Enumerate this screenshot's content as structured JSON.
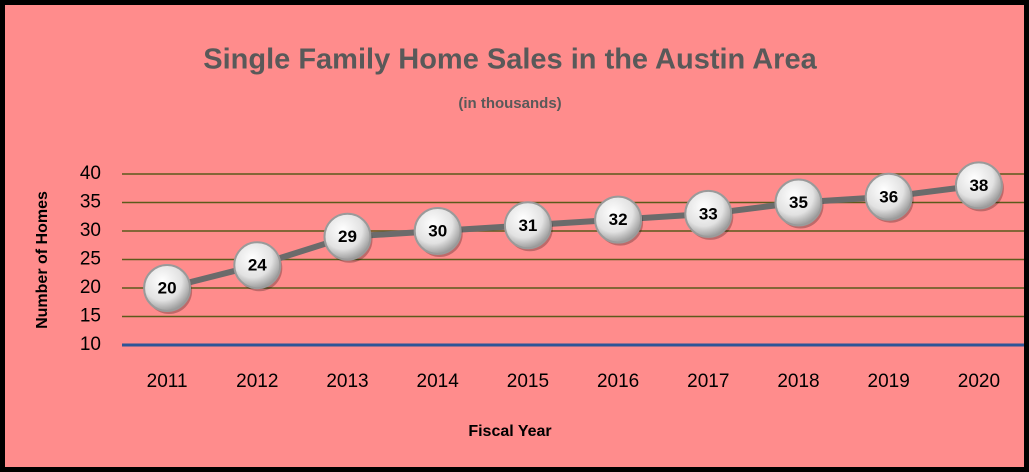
{
  "chart_data": {
    "type": "line",
    "title": "Single Family Home Sales in the Austin Area",
    "subtitle": "(in thousands)",
    "x_label": "Fiscal Year",
    "y_label": "Number of Homes",
    "categories": [
      "2011",
      "2012",
      "2013",
      "2014",
      "2015",
      "2016",
      "2017",
      "2018",
      "2019",
      "2020"
    ],
    "values": [
      20,
      24,
      29,
      30,
      31,
      32,
      33,
      35,
      36,
      38
    ],
    "color": "#6b6b6b",
    "ylim": [
      10,
      40
    ],
    "yticks": [
      10,
      15,
      20,
      25,
      30,
      35,
      40
    ],
    "grid": true
  }
}
